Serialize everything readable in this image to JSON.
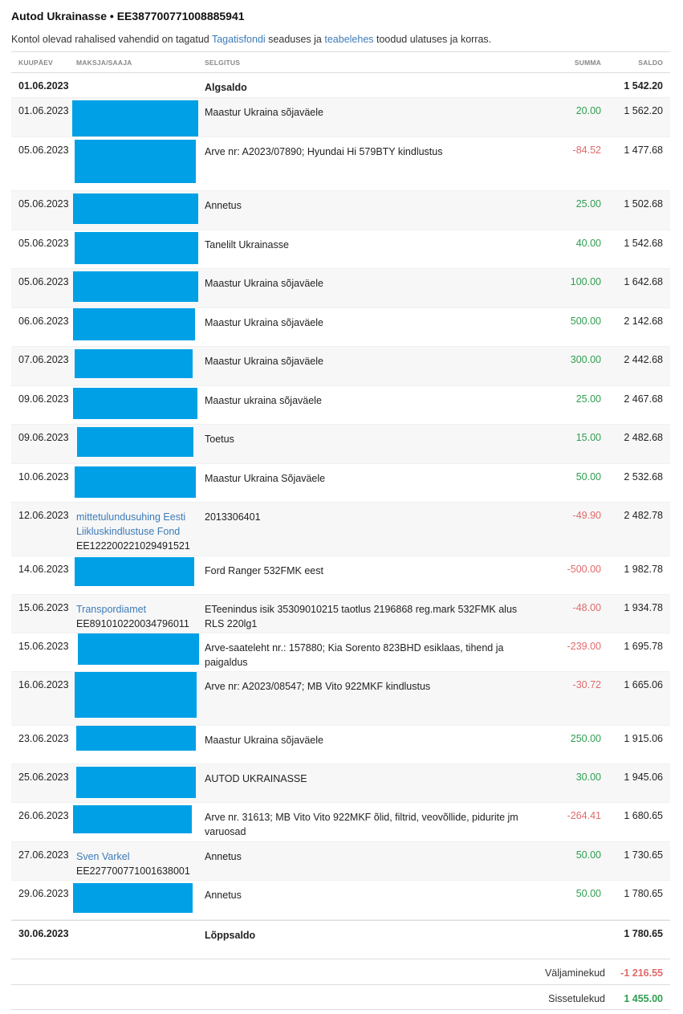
{
  "header": {
    "title": "Autod Ukrainasse • EE387700771008885941",
    "notice_pre": "Kontol olevad rahalised vahendid on tagatud ",
    "notice_link1": "Tagatisfondi",
    "notice_mid": " seaduses ja ",
    "notice_link2": "teabelehes",
    "notice_post": " toodud ulatuses ja korras."
  },
  "columns": {
    "date": "KUUPÄEV",
    "payer": "MAKSJA/SAAJA",
    "desc": "SELGITUS",
    "amount": "SUMMA",
    "balance": "SALDO"
  },
  "colors": {
    "positive": "#2e9e50",
    "negative": "#e06a6a",
    "redaction": "#00a0e6",
    "link": "#3d7bb8"
  },
  "opening": {
    "date": "01.06.2023",
    "desc": "Algsaldo",
    "balance": "1 542.20"
  },
  "rows": [
    {
      "date": "01.06.2023",
      "desc": "Maastur Ukraina sõjaväele",
      "amount": "20.00",
      "balance": "1 562.20",
      "redacted": true
    },
    {
      "date": "05.06.2023",
      "desc": "Arve nr: A2023/07890; Hyundai Hi 579BTY kindlustus",
      "amount": "-84.52",
      "balance": "1 477.68",
      "redacted": true
    },
    {
      "date": "05.06.2023",
      "desc": "Annetus",
      "amount": "25.00",
      "balance": "1 502.68",
      "redacted": true
    },
    {
      "date": "05.06.2023",
      "desc": "Tanelilt Ukrainasse",
      "amount": "40.00",
      "balance": "1 542.68",
      "redacted": true
    },
    {
      "date": "05.06.2023",
      "desc": "Maastur Ukraina sõjaväele",
      "amount": "100.00",
      "balance": "1 642.68",
      "redacted": true
    },
    {
      "date": "06.06.2023",
      "desc": "Maastur Ukraina sõjaväele",
      "amount": "500.00",
      "balance": "2 142.68",
      "redacted": true
    },
    {
      "date": "07.06.2023",
      "desc": "Maastur Ukraina sõjaväele",
      "amount": "300.00",
      "balance": "2 442.68",
      "redacted": true
    },
    {
      "date": "09.06.2023",
      "desc": "Maastur ukraina sõjaväele",
      "amount": "25.00",
      "balance": "2 467.68",
      "redacted": true
    },
    {
      "date": "09.06.2023",
      "desc": "Toetus",
      "amount": "15.00",
      "balance": "2 482.68",
      "redacted": true
    },
    {
      "date": "10.06.2023",
      "desc": "Maastur Ukraina Sõjaväele",
      "amount": "50.00",
      "balance": "2 532.68",
      "redacted": true
    },
    {
      "date": "12.06.2023",
      "payer": "mittetulundusuhing Eesti Liikluskindlustuse Fond",
      "account": "EE122200221029491521",
      "desc": "2013306401",
      "amount": "-49.90",
      "balance": "2 482.78"
    },
    {
      "date": "14.06.2023",
      "desc": "Ford Ranger 532FMK eest",
      "amount": "-500.00",
      "balance": "1 982.78",
      "redacted": true
    },
    {
      "date": "15.06.2023",
      "payer": "Transpordiamet",
      "account": "EE891010220034796011",
      "desc": "ETeenindus isik 35309010215 taotlus 2196868 reg.mark 532FMK alus RLS 220lg1",
      "amount": "-48.00",
      "balance": "1 934.78"
    },
    {
      "date": "15.06.2023",
      "desc": "Arve-saateleht nr.: 157880; Kia Sorento 823BHD esiklaas, tihend ja paigaldus",
      "amount": "-239.00",
      "balance": "1 695.78",
      "redacted": true
    },
    {
      "date": "16.06.2023",
      "desc": "Arve nr: A2023/08547; MB Vito 922MKF kindlustus",
      "amount": "-30.72",
      "balance": "1 665.06",
      "redacted": true
    },
    {
      "date": "23.06.2023",
      "desc": "Maastur Ukraina sõjaväele",
      "amount": "250.00",
      "balance": "1 915.06",
      "redacted": true
    },
    {
      "date": "25.06.2023",
      "desc": "AUTOD UKRAINASSE",
      "amount": "30.00",
      "balance": "1 945.06",
      "redacted": true
    },
    {
      "date": "26.06.2023",
      "desc": "Arve nr. 31613; MB Vito Vito 922MKF õlid, filtrid, veovõllide, pidurite jm varuosad",
      "amount": "-264.41",
      "balance": "1 680.65",
      "redacted": true
    },
    {
      "date": "27.06.2023",
      "payer": "Sven Varkel",
      "account": "EE227700771001638001",
      "desc": "Annetus",
      "amount": "50.00",
      "balance": "1 730.65"
    },
    {
      "date": "29.06.2023",
      "desc": "Annetus",
      "amount": "50.00",
      "balance": "1 780.65",
      "redacted": true
    }
  ],
  "closing": {
    "date": "30.06.2023",
    "desc": "Lõppsaldo",
    "balance": "1 780.65"
  },
  "summary": {
    "out_label": "Väljaminekud",
    "out_value": "-1 216.55",
    "in_label": "Sissetulekud",
    "in_value": "1 455.00"
  }
}
